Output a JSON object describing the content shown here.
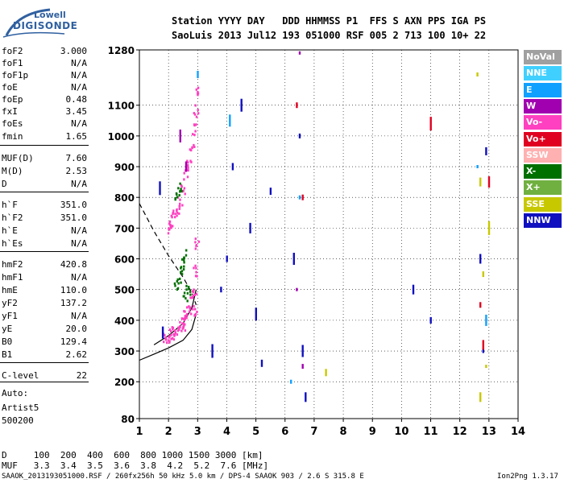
{
  "logo": {
    "line1": "Lowell",
    "line2": "DIGISONDE"
  },
  "header": {
    "row1": "Station YYYY DAY   DDD HHMMSS P1  FFS S AXN PPS IGA PS",
    "row2": "SaoLuis 2013 Jul12 193 051000 RSF 005 2 713 100 10+ 22"
  },
  "params": [
    {
      "name": "foF2",
      "value": "3.000"
    },
    {
      "name": "foF1",
      "value": "N/A"
    },
    {
      "name": "foF1p",
      "value": "N/A"
    },
    {
      "name": "foE",
      "value": "N/A"
    },
    {
      "name": "foEp",
      "value": "0.48"
    },
    {
      "name": "fxI",
      "value": "3.45"
    },
    {
      "name": "foEs",
      "value": "N/A"
    },
    {
      "name": "fmin",
      "value": "1.65"
    },
    {
      "name": "MUF(D)",
      "value": "7.60"
    },
    {
      "name": "M(D)",
      "value": "2.53"
    },
    {
      "name": "D",
      "value": "N/A"
    },
    {
      "name": "h`F",
      "value": "351.0"
    },
    {
      "name": "h`F2",
      "value": "351.0"
    },
    {
      "name": "h`E",
      "value": "N/A"
    },
    {
      "name": "h`Es",
      "value": "N/A"
    },
    {
      "name": "hmF2",
      "value": "420.8"
    },
    {
      "name": "hmF1",
      "value": "N/A"
    },
    {
      "name": "hmE",
      "value": "110.0"
    },
    {
      "name": "yF2",
      "value": "137.2"
    },
    {
      "name": "yF1",
      "value": "N/A"
    },
    {
      "name": "yE",
      "value": "20.0"
    },
    {
      "name": "B0",
      "value": "129.4"
    },
    {
      "name": "B1",
      "value": "2.62"
    },
    {
      "name": "C-level",
      "value": "22"
    }
  ],
  "autoscaling": {
    "line1": "Auto:",
    "line2": "Artist5",
    "line3": "500200"
  },
  "legend": [
    {
      "label": "NoVal",
      "color": "#a0a0a0"
    },
    {
      "label": "NNE",
      "color": "#40d0ff"
    },
    {
      "label": "E",
      "color": "#10a0ff"
    },
    {
      "label": "W",
      "color": "#a000b0"
    },
    {
      "label": "Vo-",
      "color": "#ff40c0"
    },
    {
      "label": "Vo+",
      "color": "#e00020"
    },
    {
      "label": "SSW",
      "color": "#ffb0b0"
    },
    {
      "label": "X-",
      "color": "#007000"
    },
    {
      "label": "X+",
      "color": "#70b040"
    },
    {
      "label": "SSE",
      "color": "#c8c800"
    },
    {
      "label": "NNW",
      "color": "#1010c0"
    }
  ],
  "footer": {
    "d_row": "D     100  200  400  600  800 1000 1500 3000 [km]",
    "muf_row": "MUF   3.3  3.4  3.5  3.6  3.8  4.2  5.2  7.6 [MHz]",
    "info": "SAAOK_2013193051000.RSF / 260fx256h 50 kHz 5.0 km / DPS-4 SAAOK 903 / 2.6 S 315.8 E",
    "version": "Ion2Png 1.3.17"
  },
  "chart_data": {
    "type": "scatter",
    "xlim": [
      1,
      14
    ],
    "ylim": [
      80,
      1280
    ],
    "x_ticks": [
      1,
      2,
      3,
      4,
      5,
      6,
      7,
      8,
      9,
      10,
      11,
      12,
      13,
      14
    ],
    "y_ticks": [
      80,
      200,
      300,
      400,
      500,
      600,
      700,
      800,
      900,
      1000,
      1100,
      1280
    ],
    "grid": true,
    "legend_position": "right",
    "profile_curve": [
      [
        1.0,
        270
      ],
      [
        1.5,
        290
      ],
      [
        2.0,
        310
      ],
      [
        2.5,
        335
      ],
      [
        2.8,
        370
      ],
      [
        2.95,
        420
      ]
    ],
    "profile_curve2": [
      [
        1.5,
        320
      ],
      [
        2.0,
        350
      ],
      [
        2.5,
        390
      ],
      [
        2.8,
        440
      ],
      [
        2.95,
        500
      ]
    ],
    "dashed_curve": [
      [
        1.0,
        780
      ],
      [
        1.5,
        690
      ],
      [
        2.0,
        610
      ],
      [
        2.5,
        540
      ],
      [
        2.8,
        490
      ],
      [
        2.95,
        450
      ]
    ],
    "traces": [
      {
        "name": "O-trace F2 low",
        "color": "#ff40c0",
        "points": [
          [
            1.9,
            340
          ],
          [
            2.0,
            345
          ],
          [
            2.1,
            350
          ],
          [
            2.2,
            360
          ],
          [
            2.3,
            370
          ],
          [
            2.4,
            380
          ],
          [
            2.5,
            395
          ],
          [
            2.6,
            410
          ],
          [
            2.7,
            430
          ],
          [
            2.8,
            460
          ],
          [
            2.9,
            500
          ],
          [
            2.95,
            560
          ],
          [
            3.0,
            650
          ],
          [
            2.9,
            420
          ],
          [
            2.5,
            370
          ]
        ]
      },
      {
        "name": "O-trace F2 echo",
        "color": "#ff40c0",
        "points": [
          [
            2.0,
            700
          ],
          [
            2.1,
            720
          ],
          [
            2.2,
            740
          ],
          [
            2.3,
            760
          ],
          [
            2.4,
            790
          ],
          [
            2.5,
            830
          ],
          [
            2.6,
            870
          ],
          [
            2.7,
            910
          ],
          [
            2.8,
            960
          ],
          [
            2.9,
            1020
          ],
          [
            2.95,
            1080
          ],
          [
            3.0,
            1150
          ]
        ]
      },
      {
        "name": "X-trace",
        "color": "#007000",
        "points": [
          [
            2.3,
            520
          ],
          [
            2.4,
            540
          ],
          [
            2.5,
            580
          ],
          [
            2.6,
            610
          ],
          [
            2.3,
            800
          ],
          [
            2.4,
            830
          ],
          [
            2.6,
            480
          ],
          [
            2.7,
            500
          ]
        ]
      },
      {
        "name": "NNW noise",
        "color": "#1010c0",
        "points": [
          [
            1.7,
            830
          ],
          [
            1.8,
            360
          ],
          [
            3.5,
            300
          ],
          [
            3.8,
            500
          ],
          [
            4.0,
            600
          ],
          [
            4.2,
            900
          ],
          [
            4.5,
            1100
          ],
          [
            4.8,
            700
          ],
          [
            5.0,
            420
          ],
          [
            5.2,
            260
          ],
          [
            5.5,
            820
          ],
          [
            6.3,
            600
          ],
          [
            6.5,
            1000
          ],
          [
            6.6,
            300
          ],
          [
            6.7,
            150
          ],
          [
            10.4,
            500
          ],
          [
            11.0,
            400
          ],
          [
            12.7,
            600
          ],
          [
            12.8,
            300
          ],
          [
            12.9,
            950
          ]
        ]
      },
      {
        "name": "SSE noise",
        "color": "#c8c800",
        "points": [
          [
            7.4,
            230
          ],
          [
            12.6,
            1200
          ],
          [
            12.7,
            850
          ],
          [
            12.8,
            550
          ],
          [
            12.9,
            250
          ],
          [
            13.0,
            700
          ],
          [
            12.7,
            150
          ]
        ]
      },
      {
        "name": "Vo+ noise",
        "color": "#e00020",
        "points": [
          [
            6.4,
            1100
          ],
          [
            6.6,
            800
          ],
          [
            11.0,
            1040
          ],
          [
            12.7,
            450
          ],
          [
            13.0,
            850
          ],
          [
            12.8,
            320
          ]
        ]
      },
      {
        "name": "E noise",
        "color": "#10a0ff",
        "points": [
          [
            3.0,
            1200
          ],
          [
            4.1,
            1050
          ],
          [
            6.5,
            800
          ],
          [
            6.2,
            200
          ],
          [
            12.6,
            900
          ],
          [
            12.9,
            400
          ]
        ]
      },
      {
        "name": "W noise",
        "color": "#a000b0",
        "points": [
          [
            2.4,
            1000
          ],
          [
            2.6,
            900
          ],
          [
            6.5,
            1270
          ],
          [
            6.4,
            500
          ],
          [
            6.6,
            250
          ]
        ]
      }
    ]
  }
}
